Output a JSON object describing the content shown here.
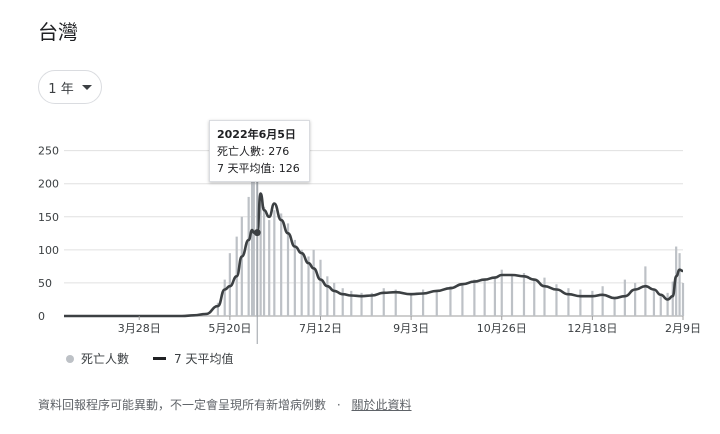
{
  "title": "台灣",
  "range_selector": {
    "label": "1 年"
  },
  "tooltip": {
    "date": "2022年6月5日",
    "deaths_line": "死亡人數: 276",
    "avg_line": "7 天平均值: 126"
  },
  "legend": {
    "bars": "死亡人數",
    "line": "7 天平均值"
  },
  "footer": {
    "note": "資料回報程序可能異動，不一定會呈現所有新增病例數",
    "separator": "·",
    "link": "關於此資料"
  },
  "colors": {
    "bars": "#bdc1c6",
    "line": "#3c4043",
    "grid": "#e0e0e0",
    "hover": "#9aa0a6"
  },
  "chart_data": {
    "type": "bar",
    "y_ticks": [
      "0",
      "50",
      "100",
      "150",
      "200",
      "250"
    ],
    "ylim": [
      0,
      260
    ],
    "x_ticks": [
      "3月28日",
      "5月20日",
      "7月12日",
      "9月3日",
      "10月26日",
      "12月18日",
      "2月9日"
    ],
    "grid": true,
    "hover_date": "2022年6月5日",
    "series": [
      {
        "name": "死亡人數",
        "type": "bar",
        "x": [
          "2022-02-12",
          "2022-04-01",
          "2022-04-15",
          "2022-04-22",
          "2022-04-29",
          "2022-05-06",
          "2022-05-13",
          "2022-05-17",
          "2022-05-20",
          "2022-05-24",
          "2022-05-27",
          "2022-05-31",
          "2022-06-02",
          "2022-06-03",
          "2022-06-05",
          "2022-06-07",
          "2022-06-09",
          "2022-06-12",
          "2022-06-15",
          "2022-06-19",
          "2022-06-23",
          "2022-06-27",
          "2022-07-01",
          "2022-07-05",
          "2022-07-08",
          "2022-07-12",
          "2022-07-16",
          "2022-07-20",
          "2022-07-25",
          "2022-07-30",
          "2022-08-05",
          "2022-08-11",
          "2022-08-18",
          "2022-08-25",
          "2022-09-03",
          "2022-09-10",
          "2022-09-18",
          "2022-09-26",
          "2022-10-03",
          "2022-10-10",
          "2022-10-16",
          "2022-10-22",
          "2022-10-26",
          "2022-11-01",
          "2022-11-08",
          "2022-11-14",
          "2022-11-20",
          "2022-11-27",
          "2022-12-04",
          "2022-12-11",
          "2022-12-18",
          "2022-12-24",
          "2022-12-31",
          "2023-01-06",
          "2023-01-12",
          "2023-01-18",
          "2023-01-23",
          "2023-01-27",
          "2023-01-31",
          "2023-02-03",
          "2023-02-05",
          "2023-02-07",
          "2023-02-09"
        ],
        "values": [
          0,
          0,
          0,
          1,
          2,
          5,
          20,
          55,
          95,
          120,
          150,
          180,
          215,
          240,
          276,
          175,
          165,
          145,
          160,
          155,
          140,
          115,
          100,
          90,
          100,
          85,
          60,
          50,
          42,
          38,
          35,
          35,
          42,
          40,
          35,
          40,
          38,
          45,
          50,
          55,
          55,
          60,
          70,
          62,
          65,
          55,
          58,
          48,
          42,
          40,
          38,
          45,
          28,
          55,
          50,
          75,
          40,
          30,
          35,
          52,
          105,
          95,
          50
        ]
      },
      {
        "name": "7 天平均值",
        "type": "line",
        "x": [
          "2022-02-12",
          "2022-04-01",
          "2022-04-15",
          "2022-04-22",
          "2022-04-29",
          "2022-05-06",
          "2022-05-13",
          "2022-05-17",
          "2022-05-20",
          "2022-05-24",
          "2022-05-27",
          "2022-05-31",
          "2022-06-02",
          "2022-06-03",
          "2022-06-05",
          "2022-06-07",
          "2022-06-09",
          "2022-06-12",
          "2022-06-15",
          "2022-06-19",
          "2022-06-23",
          "2022-06-27",
          "2022-07-01",
          "2022-07-05",
          "2022-07-08",
          "2022-07-12",
          "2022-07-16",
          "2022-07-20",
          "2022-07-25",
          "2022-07-30",
          "2022-08-05",
          "2022-08-11",
          "2022-08-18",
          "2022-08-25",
          "2022-09-03",
          "2022-09-10",
          "2022-09-18",
          "2022-09-26",
          "2022-10-03",
          "2022-10-10",
          "2022-10-16",
          "2022-10-22",
          "2022-10-26",
          "2022-11-01",
          "2022-11-08",
          "2022-11-14",
          "2022-11-20",
          "2022-11-27",
          "2022-12-04",
          "2022-12-11",
          "2022-12-18",
          "2022-12-24",
          "2022-12-31",
          "2023-01-06",
          "2023-01-12",
          "2023-01-18",
          "2023-01-23",
          "2023-01-27",
          "2023-01-31",
          "2023-02-03",
          "2023-02-05",
          "2023-02-07",
          "2023-02-09"
        ],
        "values": [
          0,
          0,
          0,
          0,
          1,
          3,
          15,
          40,
          45,
          60,
          90,
          115,
          130,
          126,
          126,
          185,
          160,
          150,
          170,
          145,
          125,
          105,
          95,
          80,
          72,
          55,
          45,
          38,
          33,
          31,
          30,
          31,
          35,
          36,
          33,
          34,
          38,
          42,
          48,
          52,
          55,
          58,
          62,
          62,
          60,
          55,
          45,
          40,
          33,
          30,
          30,
          32,
          27,
          30,
          40,
          45,
          40,
          32,
          25,
          30,
          60,
          70,
          68
        ]
      }
    ]
  }
}
